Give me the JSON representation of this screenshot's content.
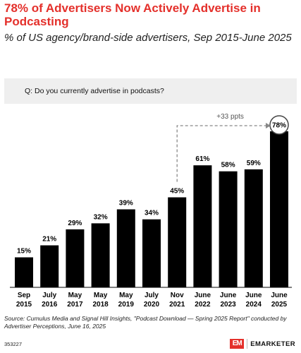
{
  "title": "78% of Advertisers Now Actively Advertise in Podcasting",
  "subtitle": "% of US agency/brand-side advertisers, Sep 2015-June 2025",
  "question": "Q: Do you currently advertise in podcasts?",
  "source": "Source: Cumulus Media and Signal Hill Insights, \"Podcast Download — Spring 2025 Report\" conducted by Advertiser Perceptions, June 16, 2025",
  "footer_id": "353227",
  "logo": {
    "mark": "EM",
    "text": "EMARKETER"
  },
  "colors": {
    "accent": "#e4302b",
    "bar": "#000000",
    "annotation": "#888888"
  },
  "chart_data": {
    "type": "bar",
    "categories": [
      [
        "Sep",
        "2015"
      ],
      [
        "July",
        "2016"
      ],
      [
        "May",
        "2017"
      ],
      [
        "May",
        "2018"
      ],
      [
        "May",
        "2019"
      ],
      [
        "July",
        "2020"
      ],
      [
        "Nov",
        "2021"
      ],
      [
        "June",
        "2022"
      ],
      [
        "June",
        "2023"
      ],
      [
        "June",
        "2024"
      ],
      [
        "June",
        "2025"
      ]
    ],
    "values": [
      15,
      21,
      29,
      32,
      39,
      34,
      45,
      61,
      58,
      59,
      78
    ],
    "labels": [
      "15%",
      "21%",
      "29%",
      "32%",
      "39%",
      "34%",
      "45%",
      "61%",
      "58%",
      "59%",
      "78%"
    ],
    "ylim": [
      0,
      78
    ],
    "annotation": {
      "text": "+33 ppts",
      "from_index": 6,
      "to_index": 10
    },
    "highlight_index": 10
  }
}
